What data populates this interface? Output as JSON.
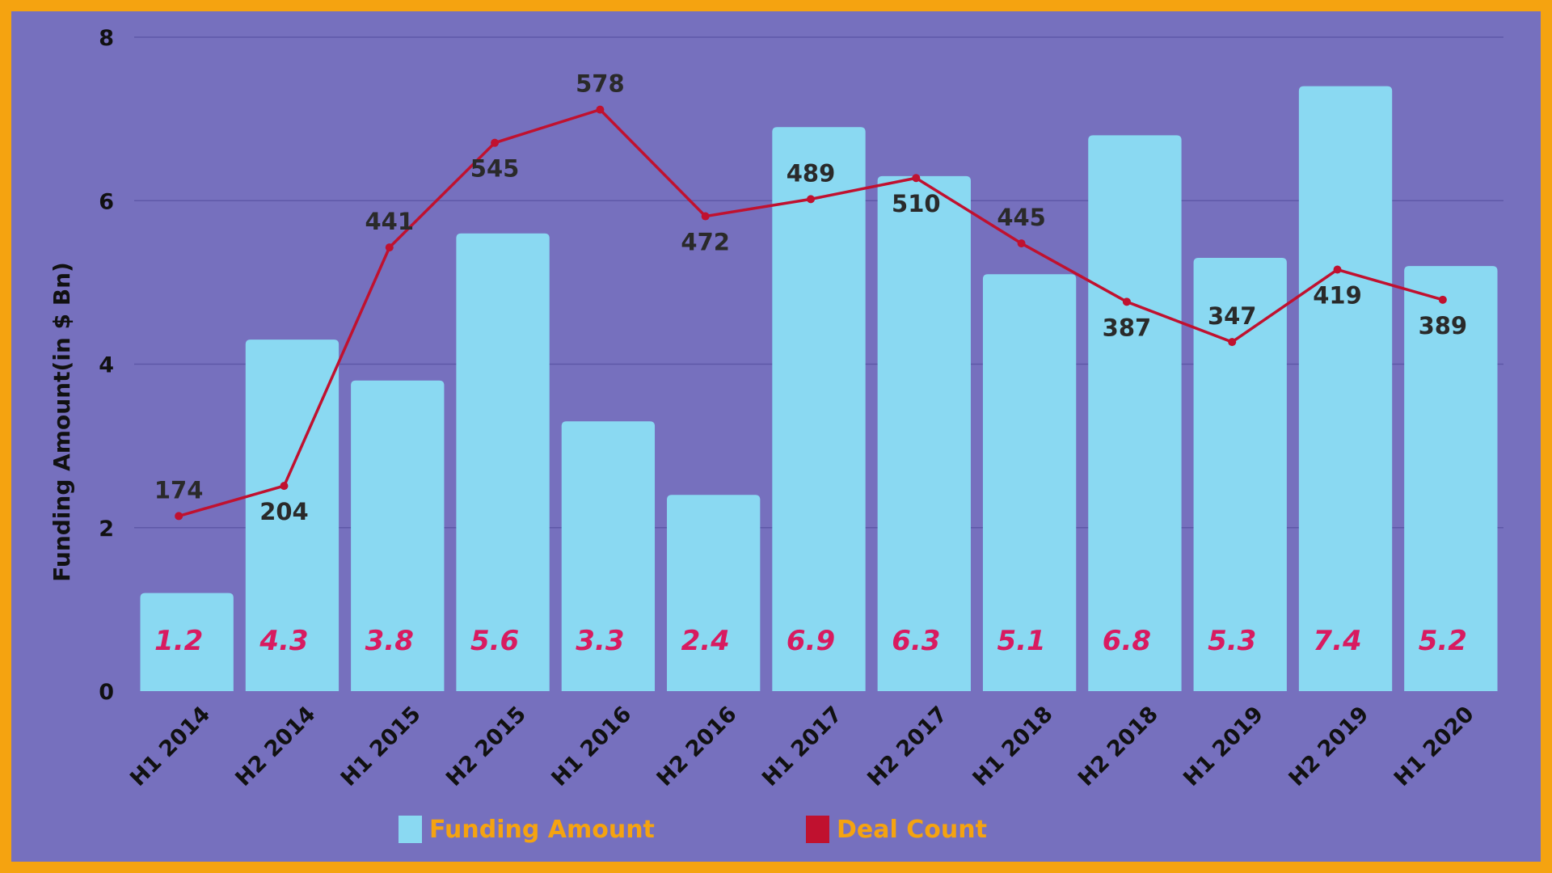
{
  "chart_data": {
    "type": "bar",
    "categories": [
      "H1 2014",
      "H2 2014",
      "H1 2015",
      "H2 2015",
      "H1 2016",
      "H2 2016",
      "H1 2017",
      "H2 2017",
      "H1 2018",
      "H2 2018",
      "H1 2019",
      "H2 2019",
      "H1 2020"
    ],
    "series": [
      {
        "name": "Funding Amount",
        "type": "bar",
        "color": "#8AD9F2",
        "values": [
          1.2,
          4.3,
          3.8,
          5.6,
          3.3,
          2.4,
          6.9,
          6.3,
          5.1,
          6.8,
          5.3,
          7.4,
          5.2
        ],
        "labels": [
          "1.2",
          "4.3",
          "3.8",
          "5.6",
          "3.3",
          "2.4",
          "6.9",
          "6.3",
          "5.1",
          "6.8",
          "5.3",
          "7.4",
          "5.2"
        ]
      },
      {
        "name": "Deal Count",
        "type": "line",
        "color": "#C0112F",
        "values": [
          174,
          204,
          441,
          545,
          578,
          472,
          489,
          510,
          445,
          387,
          347,
          419,
          389
        ],
        "labels": [
          "174",
          "204",
          "441",
          "545",
          "578",
          "472",
          "489",
          "510",
          "445",
          "387",
          "347",
          "419",
          "389"
        ]
      }
    ],
    "title": "",
    "ylabel": "Funding Amount(in $ Bn)",
    "ylim": [
      0,
      8
    ],
    "yticks": [
      "0",
      "2",
      "4",
      "6",
      "8"
    ],
    "legend_position": "bottom",
    "grid": true,
    "colors": {
      "background": "#7670BE",
      "border": "#F5A310",
      "bar_label": "#D81B60",
      "legend_text": "#F5A310"
    }
  }
}
